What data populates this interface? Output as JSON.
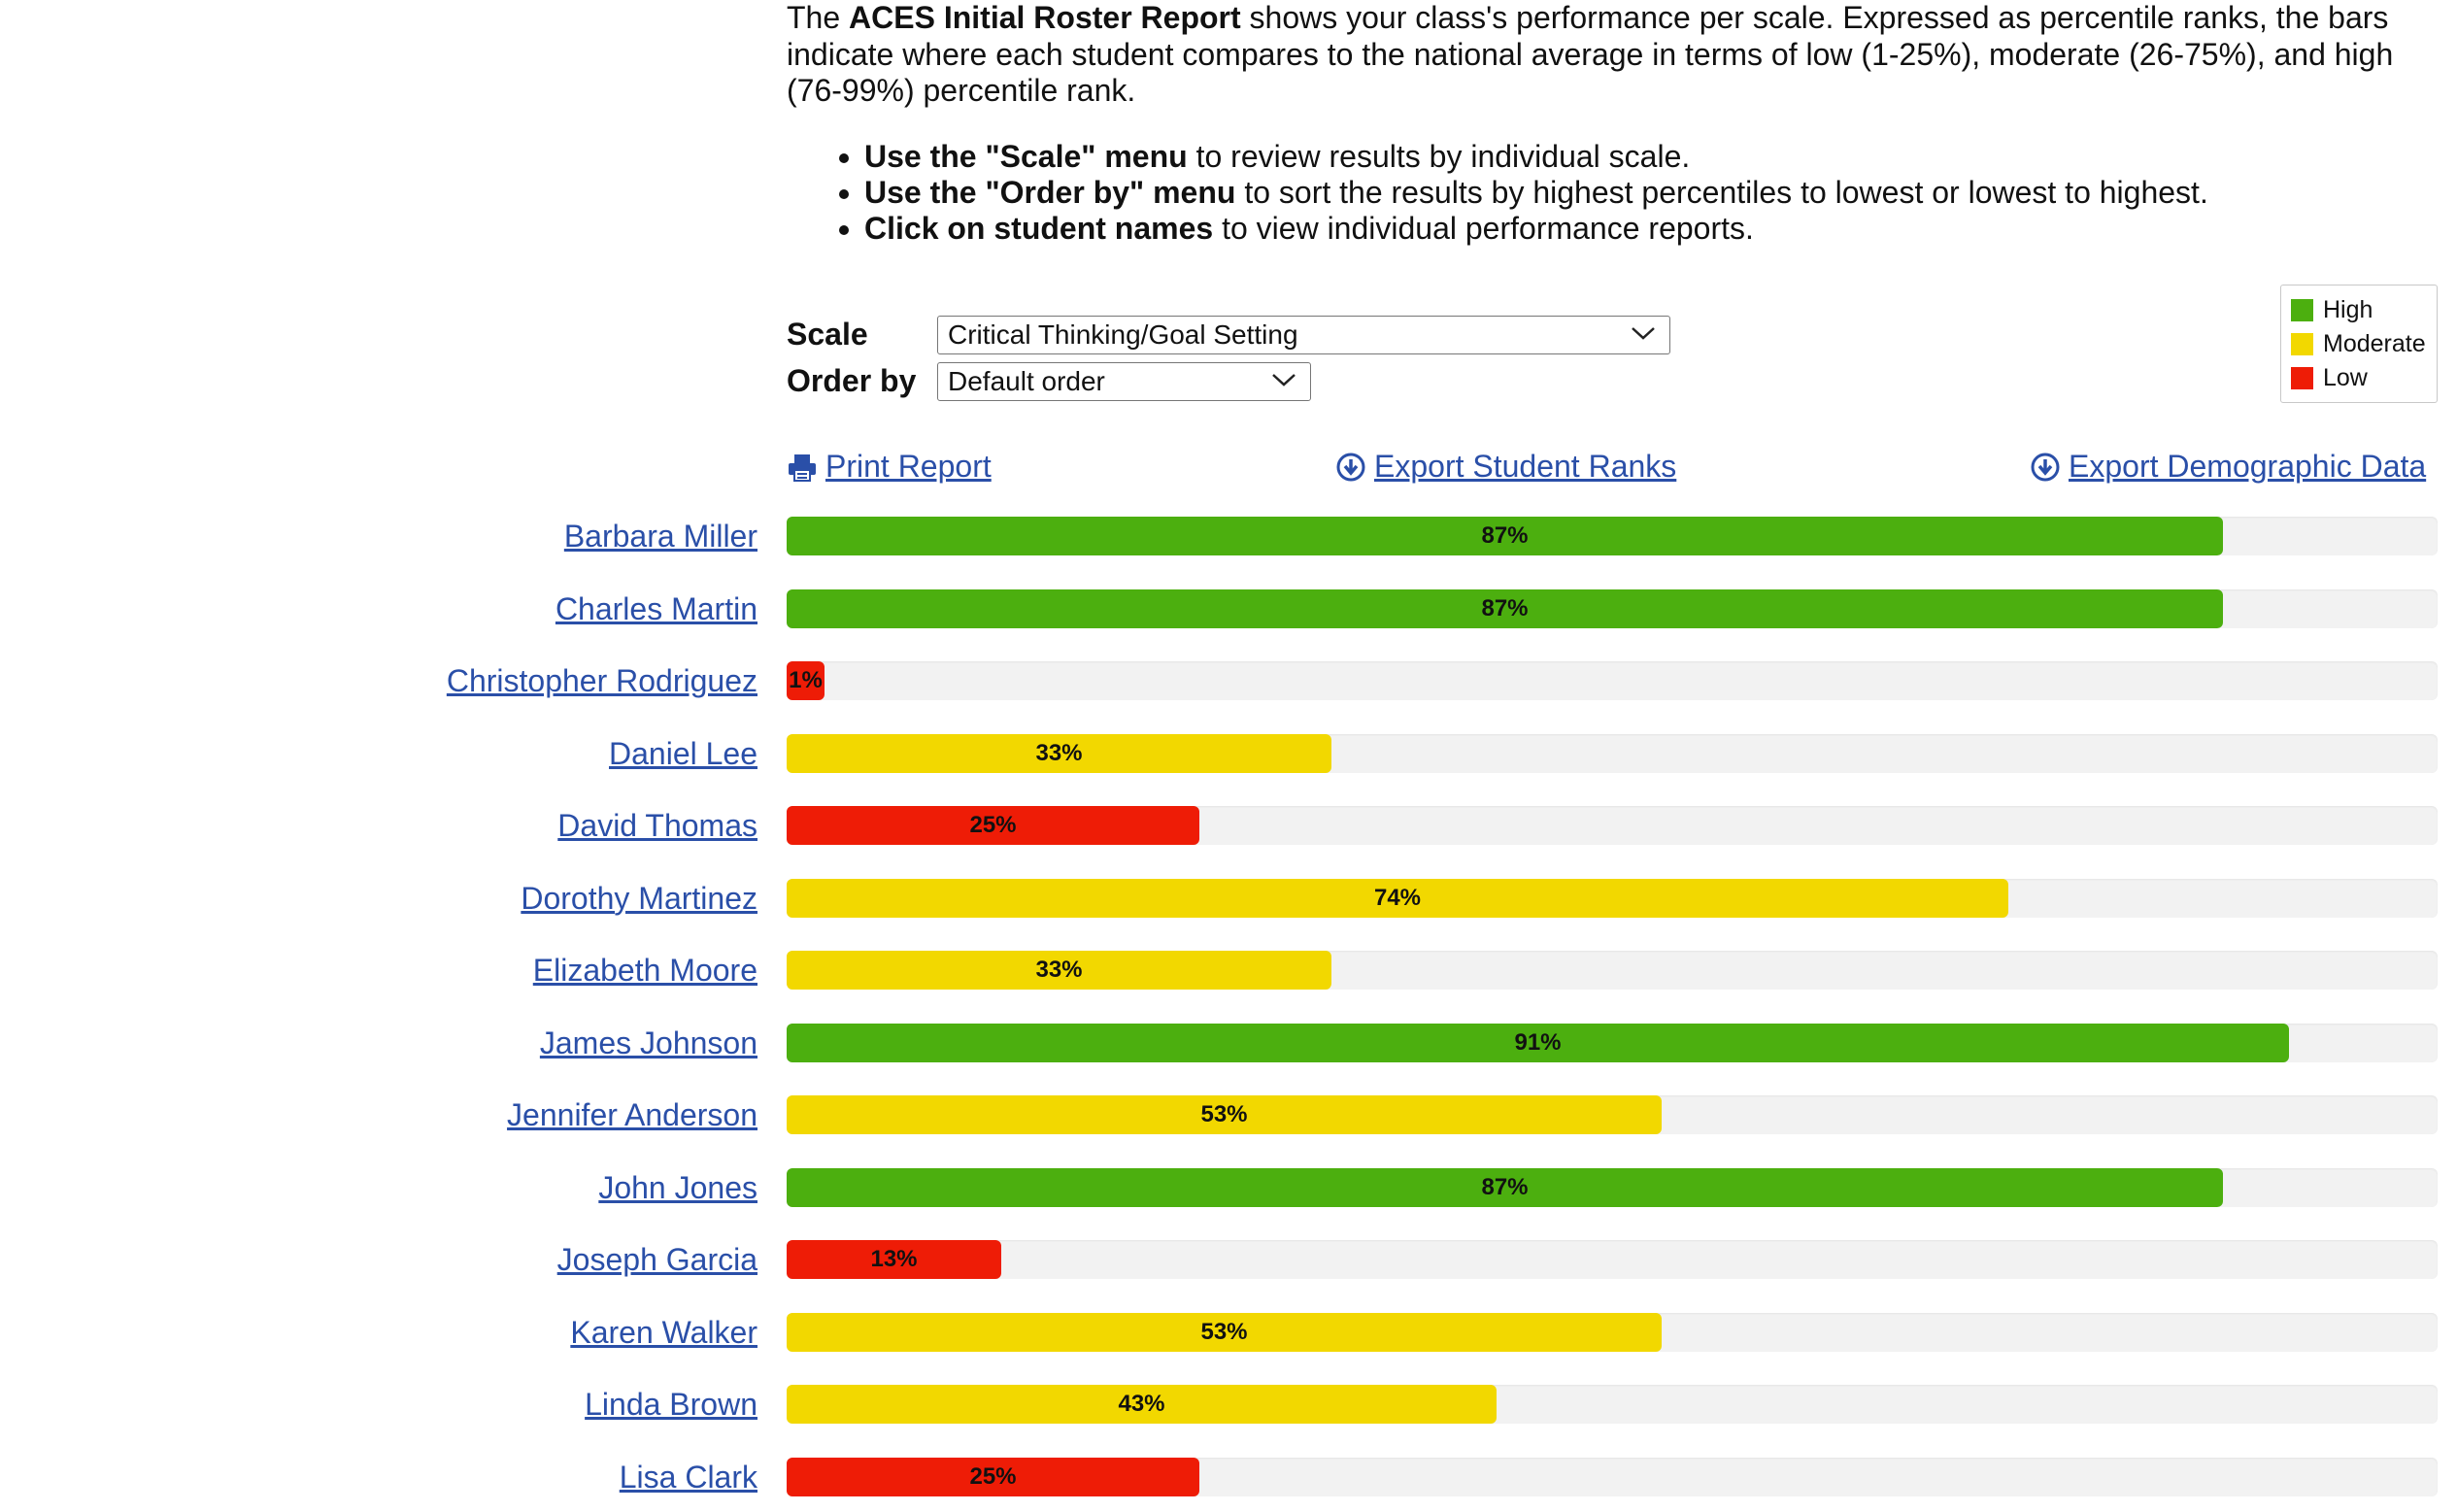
{
  "intro": {
    "prefix": "The ",
    "title": "ACES Initial Roster Report",
    "text": " shows your class's performance per scale. Expressed as percentile ranks, the bars indicate where each student compares to the national average in terms of low (1-25%), moderate (26-75%), and high (76-99%) percentile rank."
  },
  "bullets": [
    {
      "bold": "Use the \"Scale\" menu",
      "rest": " to review results by individual scale."
    },
    {
      "bold": "Use the \"Order by\" menu",
      "rest": " to sort the results by highest percentiles to lowest or lowest to highest."
    },
    {
      "bold": "Click on student names",
      "rest": " to view individual performance reports."
    }
  ],
  "controls": {
    "scale_label": "Scale",
    "scale_value": "Critical Thinking/Goal Setting",
    "order_label": "Order by",
    "order_value": "Default order"
  },
  "legend": [
    {
      "label": "High",
      "color": "#4caf0f"
    },
    {
      "label": "Moderate",
      "color": "#f2d800"
    },
    {
      "label": "Low",
      "color": "#ee1c06"
    }
  ],
  "links": {
    "print": "Print Report",
    "export_ranks": "Export Student Ranks",
    "export_demo": "Export Demographic Data"
  },
  "students": [
    {
      "name": "Barbara Miller",
      "percent": 87,
      "label": "87%",
      "level": "high"
    },
    {
      "name": "Charles Martin",
      "percent": 87,
      "label": "87%",
      "level": "high"
    },
    {
      "name": "Christopher Rodriguez",
      "percent": 1,
      "label": "1%",
      "level": "low"
    },
    {
      "name": "Daniel Lee",
      "percent": 33,
      "label": "33%",
      "level": "moderate"
    },
    {
      "name": "David Thomas",
      "percent": 25,
      "label": "25%",
      "level": "low"
    },
    {
      "name": "Dorothy Martinez",
      "percent": 74,
      "label": "74%",
      "level": "moderate"
    },
    {
      "name": "Elizabeth Moore",
      "percent": 33,
      "label": "33%",
      "level": "moderate"
    },
    {
      "name": "James Johnson",
      "percent": 91,
      "label": "91%",
      "level": "high"
    },
    {
      "name": "Jennifer Anderson",
      "percent": 53,
      "label": "53%",
      "level": "moderate"
    },
    {
      "name": "John Jones",
      "percent": 87,
      "label": "87%",
      "level": "high"
    },
    {
      "name": "Joseph Garcia",
      "percent": 13,
      "label": "13%",
      "level": "low"
    },
    {
      "name": "Karen Walker",
      "percent": 53,
      "label": "53%",
      "level": "moderate"
    },
    {
      "name": "Linda Brown",
      "percent": 43,
      "label": "43%",
      "level": "moderate"
    },
    {
      "name": "Lisa Clark",
      "percent": 25,
      "label": "25%",
      "level": "low"
    }
  ],
  "colors": {
    "high": "#4caf0f",
    "moderate": "#f2d800",
    "low": "#ee1c06",
    "link": "#2a4fa8"
  }
}
